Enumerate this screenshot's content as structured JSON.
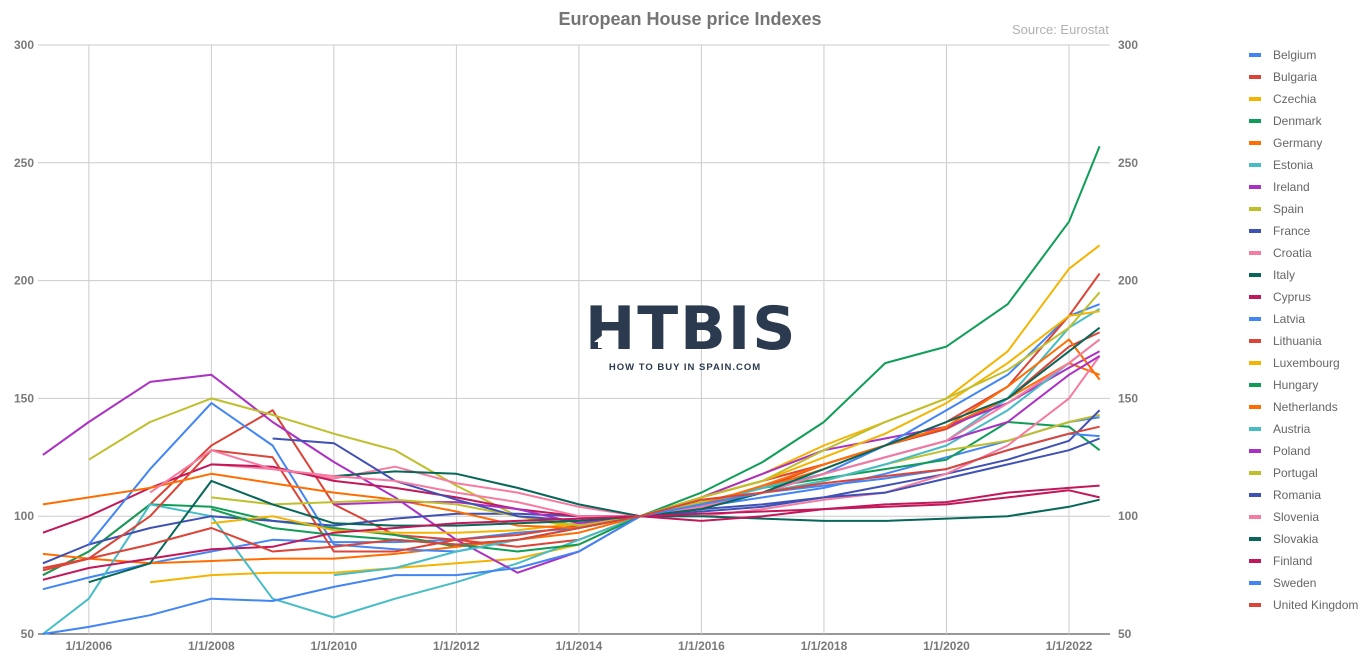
{
  "chart_data": {
    "type": "line",
    "title": "European House price Indexes",
    "source": "Source: Eurostat",
    "ylim": [
      50,
      300
    ],
    "yticks": [
      50,
      100,
      150,
      200,
      250,
      300
    ],
    "xlim": [
      2005.17,
      2022.67
    ],
    "xticks": [
      {
        "value": 2006,
        "label": "1/1/2006"
      },
      {
        "value": 2008,
        "label": "1/1/2008"
      },
      {
        "value": 2010,
        "label": "1/1/2010"
      },
      {
        "value": 2012,
        "label": "1/1/2012"
      },
      {
        "value": 2014,
        "label": "1/1/2014"
      },
      {
        "value": 2016,
        "label": "1/1/2016"
      },
      {
        "value": 2018,
        "label": "1/1/2018"
      },
      {
        "value": 2020,
        "label": "1/1/2020"
      },
      {
        "value": 2022,
        "label": "1/1/2022"
      }
    ],
    "grid": true,
    "legend_position": "right",
    "x": [
      2005.25,
      2006,
      2007,
      2008,
      2009,
      2010,
      2011,
      2012,
      2013,
      2014,
      2015,
      2016,
      2017,
      2018,
      2019,
      2020,
      2021,
      2022,
      2022.5
    ],
    "series": [
      {
        "name": "Belgium",
        "color": "#4285f4",
        "values": [
          69,
          74,
          80,
          85,
          90,
          89,
          89,
          90,
          93,
          95,
          100,
          104,
          108,
          112,
          118,
          125,
          132,
          140,
          142
        ]
      },
      {
        "name": "Bulgaria",
        "color": "#db4437",
        "values": [
          75,
          85,
          105,
          130,
          145,
          105,
          92,
          90,
          87,
          90,
          100,
          105,
          112,
          122,
          130,
          137,
          150,
          172,
          178
        ]
      },
      {
        "name": "Czechia",
        "color": "#f4b400",
        "values": [
          null,
          null,
          72,
          75,
          76,
          76,
          78,
          80,
          82,
          88,
          100,
          108,
          118,
          130,
          140,
          150,
          170,
          205,
          215
        ]
      },
      {
        "name": "Denmark",
        "color": "#0f9d58",
        "values": [
          75,
          85,
          105,
          104,
          98,
          95,
          92,
          87,
          90,
          95,
          100,
          106,
          112,
          116,
          120,
          124,
          140,
          138,
          128
        ]
      },
      {
        "name": "Germany",
        "color": "#ff6d01",
        "values": [
          84,
          82,
          80,
          81,
          82,
          82,
          84,
          87,
          90,
          93,
          100,
          106,
          112,
          120,
          130,
          138,
          150,
          165,
          160
        ]
      },
      {
        "name": "Estonia",
        "color": "#46bdc6",
        "values": [
          50,
          65,
          105,
          100,
          65,
          57,
          65,
          72,
          80,
          90,
          100,
          105,
          112,
          118,
          125,
          132,
          150,
          180,
          188
        ]
      },
      {
        "name": "Ireland",
        "color": "#ab30c4",
        "values": [
          126,
          140,
          157,
          160,
          140,
          123,
          108,
          90,
          76,
          85,
          100,
          108,
          118,
          128,
          133,
          138,
          148,
          163,
          170
        ]
      },
      {
        "name": "Spain",
        "color": "#bfbf2c",
        "values": [
          null,
          124,
          140,
          150,
          143,
          135,
          128,
          113,
          100,
          95,
          100,
          106,
          110,
          115,
          122,
          128,
          132,
          140,
          143
        ]
      },
      {
        "name": "France",
        "color": "#3f51b5",
        "values": [
          80,
          88,
          95,
          100,
          98,
          96,
          99,
          101,
          101,
          100,
          100,
          102,
          104,
          108,
          113,
          118,
          124,
          132,
          145
        ]
      },
      {
        "name": "Croatia",
        "color": "#f77aa0",
        "values": [
          null,
          null,
          null,
          122,
          120,
          116,
          121,
          114,
          110,
          104,
          100,
          100,
          103,
          107,
          110,
          118,
          130,
          150,
          168
        ]
      },
      {
        "name": "Italy",
        "color": "#07675a",
        "values": [
          null,
          null,
          null,
          null,
          null,
          117,
          119,
          118,
          112,
          105,
          100,
          100,
          99,
          98,
          98,
          99,
          100,
          104,
          107
        ]
      },
      {
        "name": "Cyprus",
        "color": "#c2185b",
        "values": [
          93,
          100,
          112,
          122,
          121,
          115,
          112,
          108,
          103,
          100,
          100,
          98,
          100,
          103,
          104,
          105,
          108,
          111,
          108
        ]
      },
      {
        "name": "Latvia",
        "color": "#4285f4",
        "values": [
          null,
          88,
          120,
          148,
          130,
          88,
          86,
          85,
          90,
          95,
          100,
          104,
          110,
          118,
          130,
          145,
          160,
          185,
          190
        ]
      },
      {
        "name": "Lithuania",
        "color": "#db4437",
        "values": [
          77,
          82,
          100,
          128,
          125,
          85,
          85,
          90,
          92,
          96,
          100,
          108,
          115,
          122,
          130,
          140,
          155,
          185,
          203
        ]
      },
      {
        "name": "Luxembourg",
        "color": "#f4b400",
        "values": [
          null,
          null,
          null,
          97,
          100,
          94,
          93,
          93,
          94,
          97,
          100,
          108,
          115,
          125,
          135,
          148,
          165,
          185,
          187
        ]
      },
      {
        "name": "Hungary",
        "color": "#0f9d58",
        "values": [
          null,
          null,
          null,
          103,
          95,
          92,
          90,
          88,
          85,
          88,
          100,
          110,
          123,
          140,
          165,
          172,
          190,
          225,
          257
        ]
      },
      {
        "name": "Netherlands",
        "color": "#ff6d01",
        "values": [
          105,
          108,
          112,
          118,
          114,
          110,
          107,
          102,
          96,
          95,
          100,
          105,
          113,
          122,
          130,
          138,
          155,
          175,
          158
        ]
      },
      {
        "name": "Austria",
        "color": "#46bdc6",
        "values": [
          null,
          null,
          null,
          null,
          null,
          75,
          78,
          85,
          90,
          95,
          100,
          105,
          110,
          115,
          122,
          130,
          145,
          165,
          175
        ]
      },
      {
        "name": "Poland",
        "color": "#ab30c4",
        "values": [
          null,
          null,
          null,
          null,
          null,
          105,
          106,
          106,
          103,
          97,
          100,
          104,
          110,
          118,
          125,
          132,
          140,
          160,
          168
        ]
      },
      {
        "name": "Portugal",
        "color": "#bfbf2c",
        "values": [
          null,
          null,
          null,
          108,
          105,
          106,
          107,
          105,
          100,
          96,
          100,
          108,
          115,
          128,
          140,
          150,
          162,
          180,
          195
        ]
      },
      {
        "name": "Romania",
        "color": "#3f51b5",
        "values": [
          null,
          null,
          null,
          null,
          133,
          131,
          115,
          107,
          100,
          98,
          100,
          103,
          105,
          108,
          110,
          116,
          122,
          128,
          133
        ]
      },
      {
        "name": "Slovenia",
        "color": "#f77aa0",
        "values": [
          null,
          null,
          110,
          128,
          120,
          117,
          115,
          110,
          106,
          100,
          100,
          104,
          110,
          118,
          125,
          132,
          148,
          165,
          175
        ]
      },
      {
        "name": "Slovakia",
        "color": "#07675a",
        "values": [
          null,
          72,
          80,
          115,
          105,
          97,
          96,
          96,
          97,
          98,
          100,
          103,
          110,
          120,
          130,
          140,
          150,
          170,
          180
        ]
      },
      {
        "name": "Finland",
        "color": "#c2185b",
        "values": [
          73,
          78,
          82,
          86,
          87,
          93,
          95,
          97,
          98,
          99,
          100,
          101,
          102,
          103,
          105,
          106,
          110,
          112,
          113
        ]
      },
      {
        "name": "Sweden",
        "color": "#4285f4",
        "values": [
          50,
          53,
          58,
          65,
          64,
          70,
          75,
          75,
          78,
          85,
          100,
          105,
          110,
          113,
          116,
          120,
          128,
          135,
          134
        ]
      },
      {
        "name": "United Kingdom",
        "color": "#db4437",
        "values": [
          78,
          82,
          88,
          95,
          85,
          87,
          90,
          88,
          90,
          95,
          100,
          107,
          110,
          114,
          117,
          120,
          128,
          135,
          138
        ]
      }
    ]
  },
  "watermark": {
    "logo_text": "HTBIS",
    "tagline": "HOW TO BUY IN SPAIN.COM"
  }
}
